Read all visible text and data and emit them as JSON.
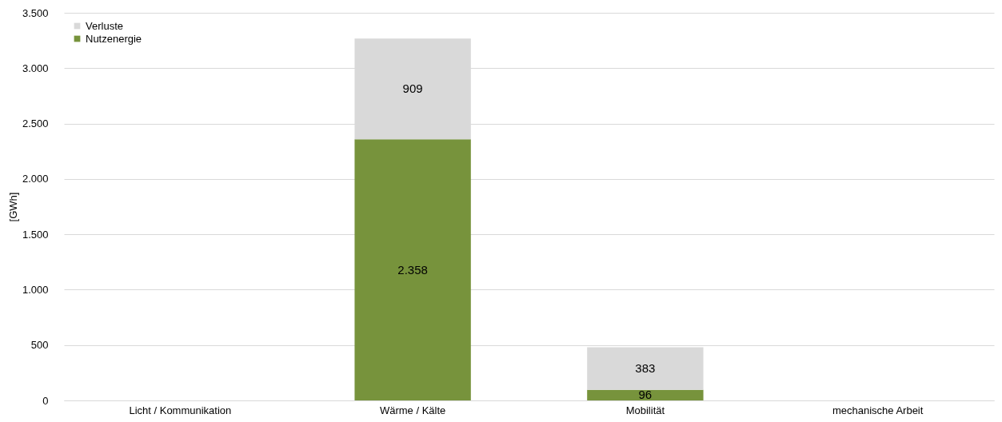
{
  "chart_data": {
    "type": "bar",
    "stacked": true,
    "ylabel": "[GWh]",
    "categories": [
      "Licht / Kommunikation",
      "Wärme / Kälte",
      "Mobilität",
      "mechanische Arbeit"
    ],
    "series": [
      {
        "name": "Nutzenergie",
        "color": "#77933c",
        "values": [
          0,
          2358,
          96,
          0
        ],
        "value_labels": [
          null,
          "2.358",
          "96",
          null
        ]
      },
      {
        "name": "Verluste",
        "color": "#d9d9d9",
        "values": [
          0,
          909,
          383,
          0
        ],
        "value_labels": [
          null,
          "909",
          "383",
          null
        ]
      }
    ],
    "ylim": [
      0,
      3500
    ],
    "yticks": [
      {
        "value": 0,
        "label": "0"
      },
      {
        "value": 500,
        "label": "500"
      },
      {
        "value": 1000,
        "label": "1.000"
      },
      {
        "value": 1500,
        "label": "1.500"
      },
      {
        "value": 2000,
        "label": "2.000"
      },
      {
        "value": 2500,
        "label": "2.500"
      },
      {
        "value": 3000,
        "label": "3.000"
      },
      {
        "value": 3500,
        "label": "3.500"
      }
    ],
    "grid": "y",
    "legend": "top left"
  }
}
